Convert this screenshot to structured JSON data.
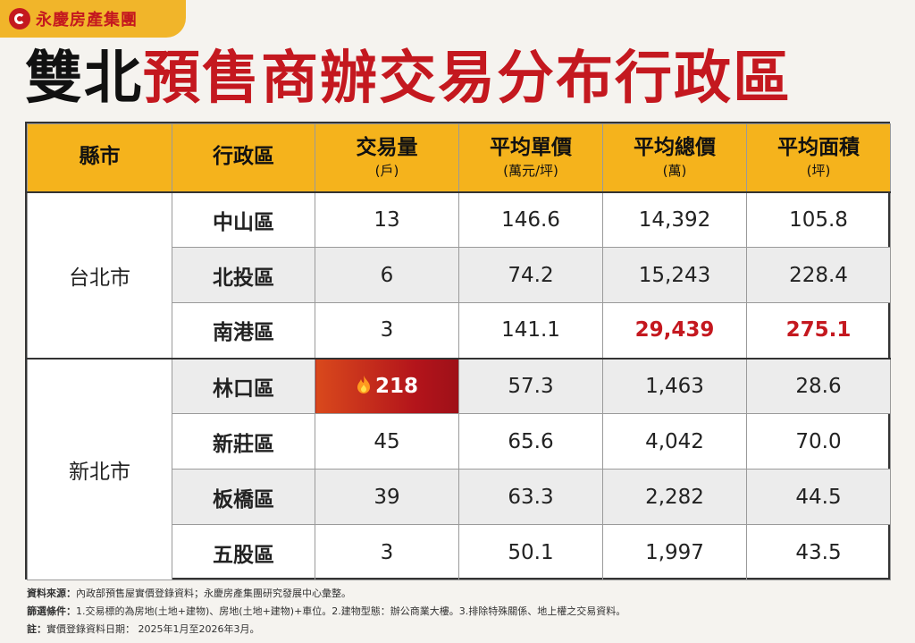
{
  "brand": {
    "name": "永慶房產集團"
  },
  "title": {
    "black": "雙北",
    "red": "預售商辦交易分布行政區"
  },
  "table": {
    "headers": [
      {
        "label": "縣市",
        "unit": ""
      },
      {
        "label": "行政區",
        "unit": ""
      },
      {
        "label": "交易量",
        "unit": "(戶)"
      },
      {
        "label": "平均單價",
        "unit": "(萬元/坪)"
      },
      {
        "label": "平均總價",
        "unit": "(萬)"
      },
      {
        "label": "平均面積",
        "unit": "(坪)"
      }
    ],
    "cities": [
      {
        "name": "台北市"
      },
      {
        "name": "新北市"
      }
    ],
    "rows": [
      {
        "district": "中山區",
        "volume": "13",
        "unit_price": "146.6",
        "total_price": "14,392",
        "area": "105.8"
      },
      {
        "district": "北投區",
        "volume": "6",
        "unit_price": "74.2",
        "total_price": "15,243",
        "area": "228.4"
      },
      {
        "district": "南港區",
        "volume": "3",
        "unit_price": "141.1",
        "total_price": "29,439",
        "area": "275.1"
      },
      {
        "district": "林口區",
        "volume": "218",
        "unit_price": "57.3",
        "total_price": "1,463",
        "area": "28.6"
      },
      {
        "district": "新莊區",
        "volume": "45",
        "unit_price": "65.6",
        "total_price": "4,042",
        "area": "70.0"
      },
      {
        "district": "板橋區",
        "volume": "39",
        "unit_price": "63.3",
        "total_price": "2,282",
        "area": "44.5"
      },
      {
        "district": "五股區",
        "volume": "3",
        "unit_price": "50.1",
        "total_price": "1,997",
        "area": "43.5"
      }
    ]
  },
  "notes": {
    "source_label": "資料來源：",
    "source_text": "內政部預售屋實價登錄資料；永慶房產集團研究發展中心彙整。",
    "filter_label": "篩選條件：",
    "filter_text": "1.交易標的為房地(土地+建物)、房地(土地+建物)+車位。2.建物型態：辦公商業大樓。3.排除特殊關係、地上權之交易資料。",
    "note_label": "註：",
    "note_text": "實價登錄資料日期： 2025年1月至2026年3月。"
  },
  "colors": {
    "brand_red": "#c4181f",
    "header_yellow": "#f5b31c",
    "highlight_red": "#c4181f"
  }
}
